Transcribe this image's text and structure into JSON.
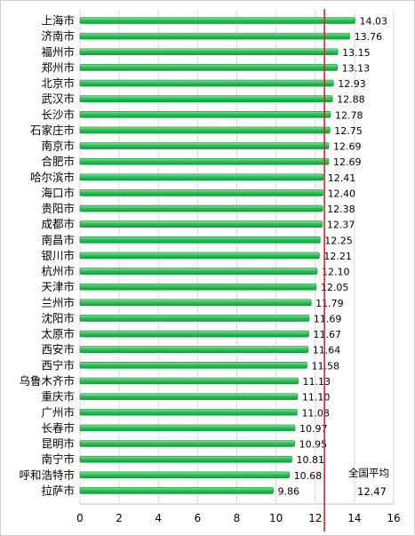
{
  "chart_data": {
    "type": "bar",
    "orientation": "horizontal",
    "categories": [
      "上海市",
      "济南市",
      "福州市",
      "郑州市",
      "北京市",
      "武汉市",
      "长沙市",
      "石家庄市",
      "南京市",
      "合肥市",
      "哈尔滨市",
      "海口市",
      "贵阳市",
      "成都市",
      "南昌市",
      "银川市",
      "杭州市",
      "天津市",
      "兰州市",
      "沈阳市",
      "太原市",
      "西安市",
      "西宁市",
      "乌鲁木齐市",
      "重庆市",
      "广州市",
      "长春市",
      "昆明市",
      "南宁市",
      "呼和浩特市",
      "拉萨市"
    ],
    "values": [
      14.03,
      13.76,
      13.15,
      13.13,
      12.93,
      12.88,
      12.78,
      12.75,
      12.69,
      12.69,
      12.41,
      12.4,
      12.38,
      12.37,
      12.25,
      12.21,
      12.1,
      12.05,
      11.79,
      11.69,
      11.67,
      11.64,
      11.58,
      11.13,
      11.1,
      11.08,
      10.97,
      10.95,
      10.81,
      10.68,
      9.86
    ],
    "value_labels": [
      "14.03",
      "13.76",
      "13.15",
      "13.13",
      "12.93",
      "12.88",
      "12.78",
      "12.75",
      "12.69",
      "12.69",
      "12.41",
      "12.40",
      "12.38",
      "12.37",
      "12.25",
      "12.21",
      "12.10",
      "12.05",
      "11.79",
      "11.69",
      "11.67",
      "11.64",
      "11.58",
      "11.13",
      "11.10",
      "11.08",
      "10.97",
      "10.95",
      "10.81",
      "10.68",
      "9.86"
    ],
    "xlim": [
      0,
      16
    ],
    "xticks": [
      "0",
      "2",
      "4",
      "6",
      "8",
      "10",
      "12",
      "14",
      "16"
    ],
    "grid": "vertical",
    "bar_color": "#2ec35a",
    "reference_line": {
      "value": 12.47,
      "label": "全国平均",
      "value_label": "12.47",
      "color": "#e0202a"
    }
  }
}
